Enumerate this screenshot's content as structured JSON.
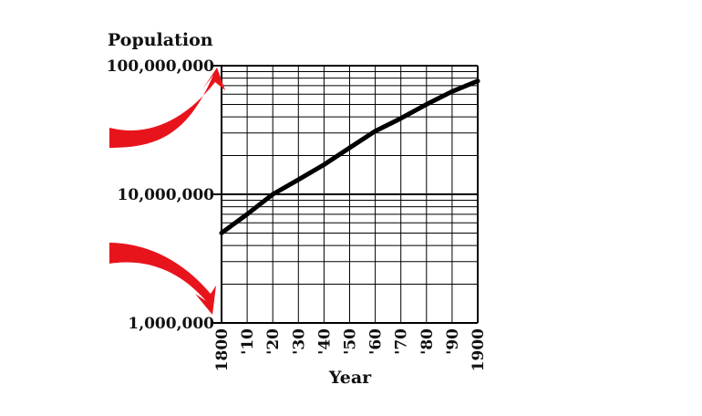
{
  "chart_data": {
    "type": "line",
    "ylabel": "Population",
    "xlabel": "Year",
    "y_scale": "log",
    "ylim": [
      1000000,
      100000000
    ],
    "xlim": [
      1800,
      1900
    ],
    "y_tick_labels": [
      "1,000,000",
      "10,000,000",
      "100,000,000"
    ],
    "x_tick_labels": [
      "1800",
      "'10",
      "'20",
      "'30",
      "'40",
      "'50",
      "'60",
      "'70",
      "'80",
      "'90",
      "1900"
    ],
    "grid": true,
    "series": [
      {
        "x": [
          1800,
          1810,
          1820,
          1830,
          1840,
          1850,
          1860,
          1870,
          1880,
          1890,
          1900
        ],
        "values": [
          5000000,
          7000000,
          10000000,
          13000000,
          17000000,
          23000000,
          31000000,
          39000000,
          50000000,
          63000000,
          76000000
        ]
      }
    ],
    "annotations": [
      {
        "shape": "curved-arrow",
        "points_to": "100,000,000"
      },
      {
        "shape": "curved-arrow",
        "points_to": "1,000,000"
      }
    ],
    "colors": {
      "line": "#000000",
      "grid": "#000000",
      "arrow": "#e8141c",
      "text": "#111111"
    }
  }
}
